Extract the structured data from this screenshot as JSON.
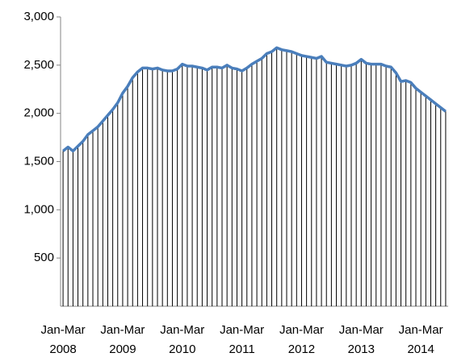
{
  "chart_data": {
    "type": "line",
    "categories": [
      "Jan-Mar\n2008",
      null,
      null,
      null,
      null,
      null,
      null,
      null,
      null,
      null,
      null,
      null,
      "Jan-Mar\n2009",
      null,
      null,
      null,
      null,
      null,
      null,
      null,
      null,
      null,
      null,
      null,
      "Jan-Mar\n2010",
      null,
      null,
      null,
      null,
      null,
      null,
      null,
      null,
      null,
      null,
      null,
      "Jan-Mar\n2011",
      null,
      null,
      null,
      null,
      null,
      null,
      null,
      null,
      null,
      null,
      null,
      "Jan-Mar\n2012",
      null,
      null,
      null,
      null,
      null,
      null,
      null,
      null,
      null,
      null,
      null,
      "Jan-Mar\n2013",
      null,
      null,
      null,
      null,
      null,
      null,
      null,
      null,
      null,
      null,
      null,
      "Jan-Mar\n2014",
      null,
      null,
      null,
      null,
      null
    ],
    "values": [
      1610,
      1650,
      1610,
      1660,
      1710,
      1780,
      1820,
      1860,
      1920,
      1980,
      2040,
      2110,
      2210,
      2280,
      2370,
      2430,
      2470,
      2470,
      2460,
      2470,
      2450,
      2440,
      2440,
      2460,
      2510,
      2490,
      2490,
      2480,
      2470,
      2450,
      2480,
      2480,
      2470,
      2500,
      2470,
      2460,
      2440,
      2470,
      2510,
      2540,
      2570,
      2620,
      2640,
      2680,
      2660,
      2650,
      2640,
      2620,
      2600,
      2590,
      2580,
      2570,
      2590,
      2530,
      2520,
      2510,
      2500,
      2490,
      2500,
      2520,
      2560,
      2520,
      2510,
      2510,
      2510,
      2490,
      2480,
      2420,
      2330,
      2340,
      2320,
      2260,
      2220,
      2180,
      2140,
      2100,
      2060,
      2020
    ],
    "color": "#4a7ebb",
    "drop_lines": true,
    "ylim": [
      0,
      3000
    ],
    "yticks": [
      {
        "value": 500,
        "label": "500"
      },
      {
        "value": 1000,
        "label": "1,000"
      },
      {
        "value": 1500,
        "label": "1,500"
      },
      {
        "value": 2000,
        "label": "2,000"
      },
      {
        "value": 2500,
        "label": "2,500"
      },
      {
        "value": 3000,
        "label": "3,000"
      }
    ]
  }
}
